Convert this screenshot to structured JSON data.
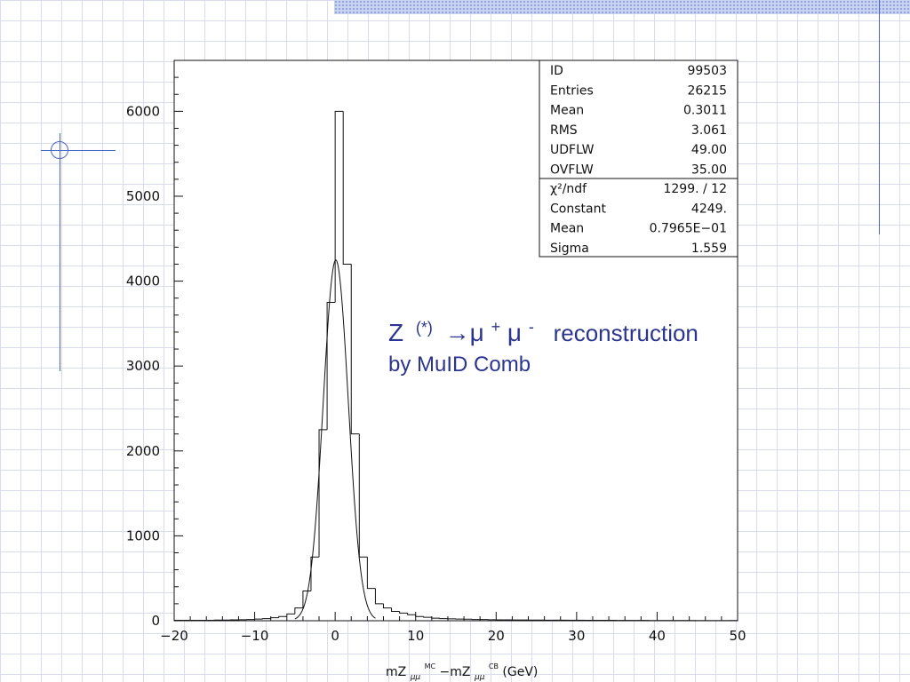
{
  "slide": {
    "accent_color": "#2b3590",
    "decoration_color": "#4a66c8"
  },
  "chart_data": {
    "type": "bar",
    "histogram_id": "99503",
    "x_axis": {
      "label_parts": [
        "mZ",
        "μμ",
        "MC",
        "−mZ",
        "μμ",
        "CB",
        "(GeV)"
      ],
      "ticks": [
        -20,
        -10,
        0,
        10,
        20,
        30,
        40,
        50
      ],
      "tick_labels": [
        "−20",
        "−10",
        "0",
        "10",
        "20",
        "30",
        "40",
        "50"
      ],
      "range": [
        -20,
        50
      ]
    },
    "y_axis": {
      "ticks": [
        0,
        1000,
        2000,
        3000,
        4000,
        5000,
        6000
      ],
      "tick_labels": [
        "0",
        "1000",
        "2000",
        "3000",
        "4000",
        "5000",
        "6000"
      ],
      "range": [
        0,
        6600
      ]
    },
    "histogram": {
      "bin_edges": [
        -20,
        -19,
        -18,
        -17,
        -16,
        -15,
        -14,
        -13,
        -12,
        -11,
        -10,
        -9,
        -8,
        -7,
        -6,
        -5,
        -4,
        -3,
        -2,
        -1,
        0,
        1,
        2,
        3,
        4,
        5,
        6,
        7,
        8,
        9,
        10,
        11,
        12,
        13,
        14,
        15,
        16,
        17,
        18,
        19,
        20,
        21,
        22,
        23,
        24,
        25,
        26,
        27,
        28,
        29,
        30,
        31,
        32,
        33,
        34,
        35,
        36,
        37,
        38,
        39,
        40,
        41,
        42,
        43,
        44,
        45,
        46,
        47,
        48,
        49,
        50
      ],
      "counts": [
        5,
        5,
        5,
        5,
        5,
        8,
        8,
        10,
        12,
        15,
        20,
        25,
        35,
        50,
        80,
        150,
        350,
        750,
        2250,
        3750,
        6000,
        4200,
        2200,
        750,
        380,
        200,
        150,
        110,
        90,
        70,
        50,
        40,
        30,
        25,
        22,
        20,
        18,
        15,
        14,
        12,
        11,
        10,
        9,
        9,
        8,
        8,
        7,
        7,
        6,
        6,
        6,
        5,
        5,
        5,
        5,
        4,
        4,
        4,
        4,
        3,
        3,
        3,
        3,
        3,
        2,
        2,
        2,
        2,
        2,
        2
      ]
    },
    "fit": {
      "function": "gaussian",
      "constant": 4249,
      "mean": 0.07965,
      "sigma": 1.559
    },
    "stats_box": [
      {
        "label": "ID",
        "value": "99503"
      },
      {
        "label": "Entries",
        "value": "26215"
      },
      {
        "label": "Mean",
        "value": "0.3011"
      },
      {
        "label": "RMS",
        "value": "3.061"
      },
      {
        "label": "UDFLW",
        "value": "49.00"
      },
      {
        "label": "OVFLW",
        "value": "35.00"
      }
    ],
    "fit_box": [
      {
        "label": "χ²/ndf",
        "value": "1299.   /   12"
      },
      {
        "label": "Constant",
        "value": "4249."
      },
      {
        "label": "Mean",
        "value": "0.7965E−01"
      },
      {
        "label": "Sigma",
        "value": "1.559"
      }
    ],
    "annotation": {
      "z": "Z",
      "star": "(*)",
      "arrow_mu": "→μ",
      "plus": "+",
      "mu": "μ",
      "minus": "-",
      "rest": "reconstruction",
      "line2": "by MuID Comb"
    }
  }
}
